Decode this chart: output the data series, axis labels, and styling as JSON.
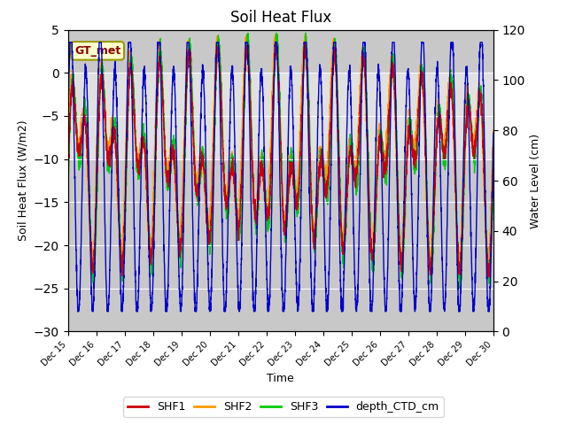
{
  "title": "Soil Heat Flux",
  "xlabel": "Time",
  "ylabel_left": "Soil Heat Flux (W/m2)",
  "ylabel_right": "Water Level (cm)",
  "ylim_left": [
    -30,
    5
  ],
  "ylim_right": [
    0,
    120
  ],
  "annotation": "GT_met",
  "colors": {
    "SHF1": "#cc0000",
    "SHF2": "#ff9900",
    "SHF3": "#00cc00",
    "depth_CTD_cm": "#0000cc"
  },
  "xtick_labels": [
    "Dec 15",
    "Dec 16",
    "Dec 17",
    "Dec 18",
    "Dec 19",
    "Dec 20",
    "Dec 21",
    "Dec 22",
    "Dec 23",
    "Dec 24",
    "Dec 25",
    "Dec 26",
    "Dec 27",
    "Dec 28",
    "Dec 29",
    "Dec 30"
  ],
  "xtick_positions": [
    0,
    24,
    48,
    72,
    96,
    120,
    144,
    168,
    192,
    216,
    240,
    264,
    288,
    312,
    336,
    360
  ],
  "yticks_left": [
    5,
    0,
    -5,
    -10,
    -15,
    -20,
    -25,
    -30
  ],
  "yticks_right": [
    120,
    100,
    80,
    60,
    40,
    20,
    0
  ],
  "shading_ymin": -10,
  "shading_ymax": 0,
  "outer_bg": "#c8c8c8",
  "inner_bg": "#e0e0e0",
  "line_width": 1.0,
  "title_fontsize": 12,
  "annotation_facecolor": "#ffffcc",
  "annotation_edgecolor": "#999900",
  "annotation_textcolor": "#880000"
}
